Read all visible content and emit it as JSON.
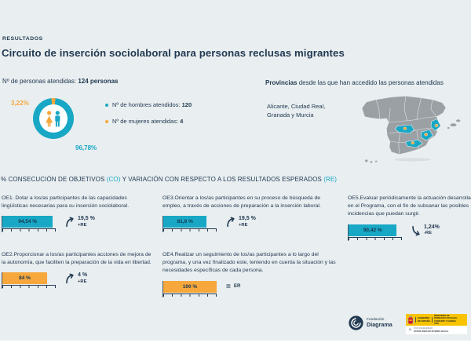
{
  "page": {
    "kicker": "RESULTADOS",
    "title": "Circuito de inserción sociolaboral para personas reclusas migrantes"
  },
  "colors": {
    "teal": "#18A8C5",
    "orange": "#F6A83D",
    "navy": "#223A52",
    "background": "#E9EEF0",
    "map_gray": "#9BA0A4"
  },
  "attended": {
    "label": "Nº de personas atendidas: ",
    "value": "124 personas",
    "donut": {
      "female_label": "3,22%",
      "male_label": "96,78%"
    },
    "legend": [
      {
        "label": "Nº de hombres atendidos: ",
        "value": "120"
      },
      {
        "label": "Nº de mujeres atendidas: ",
        "value": "4"
      }
    ]
  },
  "provinces": {
    "heading_bold": "Provincias",
    "heading_rest": " desde las que han accedido las personas atendidas",
    "line1": "Alicante, Ciudad Real,",
    "line2": "Granada y Murcia"
  },
  "objectives_heading": {
    "pre": "% CONSECUCIÓN DE OBJETIVOS ",
    "co": "(CO)",
    "mid": " Y VARIACIÓN CON RESPECTO A LOS RESULTADOS ESPERADOS ",
    "re": "(RE)"
  },
  "objectives": [
    {
      "id": "OE1",
      "text": "OE1. Dotar a los/as participantes de las capacidades lingüísticas necesarias para su inserción sociolaboral.",
      "pct": 94.54,
      "pct_label": "94,54 %",
      "color": "#18A8C5",
      "direction": "up",
      "variation_label": "19,5 %",
      "re_label": "+RE"
    },
    {
      "id": "OE2",
      "text": "OE2.Proporcionar a los/as participantes acciones de mejora de la autonomía, que faciliten la preparación de la vida en libertad.",
      "pct": 84,
      "pct_label": "84 %",
      "color": "#F6A83D",
      "direction": "up",
      "variation_label": "4 %",
      "re_label": "+RE"
    },
    {
      "id": "OE3",
      "text": "OE3.Orientar a los/as participantes en su proceso de búsqueda de empleo, a través de acciones de preparación a la inserción laboral.",
      "pct": 81.6,
      "pct_label": "81,6 %",
      "color": "#18A8C5",
      "direction": "up",
      "variation_label": "19,5 %",
      "re_label": "+RE"
    },
    {
      "id": "OE4",
      "text": "OE4.Realizar un seguimiento de los/as participantes a lo largo del programa, y una vez finalizado este, teniendo en cuenta la situación y las necesidades específicas de cada persona.",
      "pct": 100,
      "pct_label": "100 %",
      "color": "#F6A83D",
      "direction": "equal",
      "equal_symbol": "=",
      "variation_label": "",
      "re_label": "ER"
    },
    {
      "id": "OE5",
      "text": "OE5.Evaluar periódicamente la actuación desarrollada en el Programa, con el fin de subsanar las posibles incidencias que puedan surgir.",
      "pct": 90.42,
      "pct_label": "90,42 %",
      "color": "#18A8C5",
      "direction": "down",
      "variation_label": "1,24%",
      "re_label": "-RE"
    }
  ],
  "chart_data": [
    {
      "type": "pie",
      "title": "Nº de personas atendidas: 124 personas",
      "labels": [
        "Nº de hombres atendidos",
        "Nº de mujeres atendidas"
      ],
      "values": [
        96.78,
        3.22
      ],
      "counts": [
        120,
        4
      ],
      "colors": [
        "#18A8C5",
        "#F6A83D"
      ],
      "center_icons": "female-male-pictograms"
    },
    {
      "type": "bar",
      "title": "% CONSECUCIÓN DE OBJETIVOS (CO) Y VARIACIÓN CON RESPECTO A LOS RESULTADOS ESPERADOS (RE)",
      "categories": [
        "OE1",
        "OE2",
        "OE3",
        "OE4",
        "OE5"
      ],
      "values": [
        94.54,
        84,
        81.6,
        100,
        90.42
      ],
      "value_labels": [
        "94,54 %",
        "84 %",
        "81,6 %",
        "100 %",
        "90,42 %"
      ],
      "variation_vs_expected": [
        "+19,5 % RE",
        "+4 % RE",
        "+19,5 % RE",
        "= ER",
        "-1,24% RE"
      ],
      "bar_colors": [
        "#18A8C5",
        "#F6A83D",
        "#18A8C5",
        "#F6A83D",
        "#18A8C5"
      ],
      "xlim": [
        0,
        100
      ],
      "grid": false,
      "orientation": "horizontal"
    }
  ],
  "map": {
    "region": "España",
    "highlighted_provinces": [
      "Alicante",
      "Ciudad Real",
      "Granada",
      "Murcia"
    ]
  },
  "footer": {
    "diagrama": {
      "name_top": "Fundación",
      "name_bottom": "Diagrama"
    },
    "government": {
      "left_line1": "GOBIERNO",
      "left_line2": "DE ESPAÑA",
      "ministry": "MINISTERIO DE DERECHOS SOCIALES, CONSUMO Y AGENDA 2030",
      "solidarity_mark": "✕",
      "solidarity_line1": "POR SOLIDARIDAD",
      "solidarity_line2": "OTROS FINES DE INTERÉS SOCIAL"
    }
  }
}
